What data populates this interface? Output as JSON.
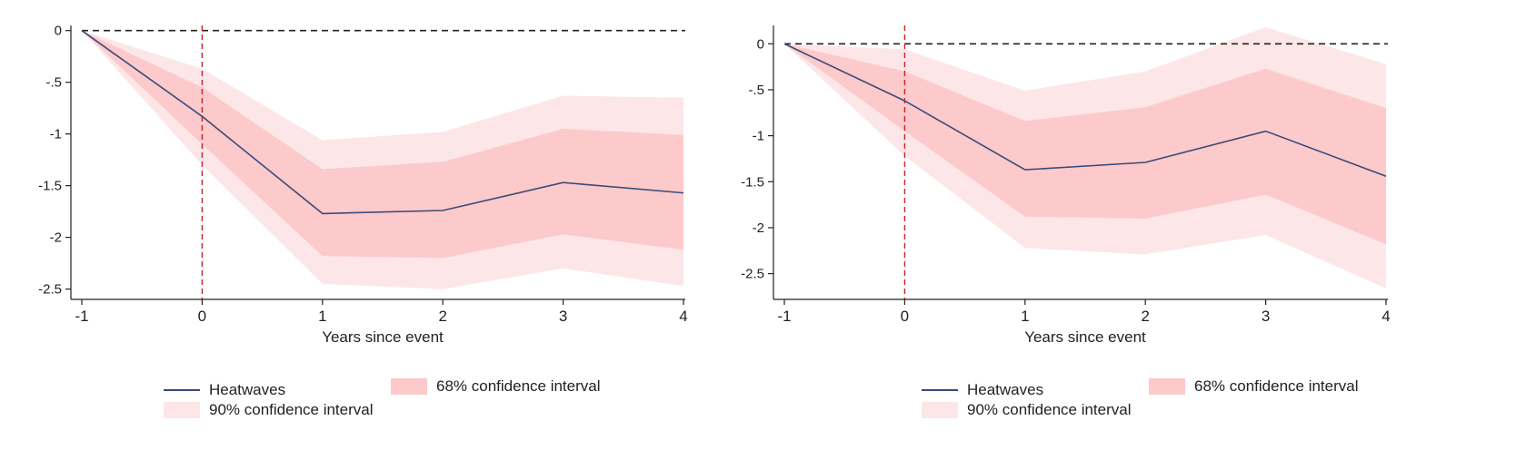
{
  "colors": {
    "line": "#3a4a7a",
    "ci68": "#fccacb",
    "ci90": "#fde6e7",
    "zero_line": "#222222",
    "event_line": "#c8202a"
  },
  "legend": {
    "line_label": "Heatwaves",
    "ci68_label": "68% confidence interval",
    "ci90_label": "90% confidence interval"
  },
  "chart_data": [
    {
      "type": "line",
      "xlabel": "Years since event",
      "ylabel": "",
      "x": [
        -1,
        0,
        1,
        2,
        3,
        4
      ],
      "xticks": [
        "-1",
        "0",
        "1",
        "2",
        "3",
        "4"
      ],
      "yticks": [
        "0",
        "-.5",
        "-1",
        "-1.5",
        "-2",
        "-2.5"
      ],
      "ytick_values": [
        0,
        -0.5,
        -1,
        -1.5,
        -2,
        -2.5
      ],
      "ylim": [
        -2.6,
        0.05
      ],
      "event_x": 0,
      "series": [
        {
          "name": "Heatwaves",
          "values": [
            0,
            -0.83,
            -1.77,
            -1.74,
            -1.47,
            -1.57
          ]
        },
        {
          "name": "68% confidence interval",
          "lower": [
            0,
            -1.1,
            -2.18,
            -2.2,
            -1.97,
            -2.12
          ],
          "upper": [
            0,
            -0.55,
            -1.34,
            -1.27,
            -0.95,
            -1.01
          ]
        },
        {
          "name": "90% confidence interval",
          "lower": [
            0,
            -1.3,
            -2.45,
            -2.5,
            -2.3,
            -2.47
          ],
          "upper": [
            0,
            -0.37,
            -1.06,
            -0.98,
            -0.63,
            -0.65
          ]
        }
      ],
      "legend_position": "bottom"
    },
    {
      "type": "line",
      "xlabel": "Years since event",
      "ylabel": "",
      "x": [
        -1,
        0,
        1,
        2,
        3,
        4
      ],
      "xticks": [
        "-1",
        "0",
        "1",
        "2",
        "3",
        "4"
      ],
      "yticks": [
        "0",
        "-.5",
        "-1",
        "-1.5",
        "-2",
        "-2.5"
      ],
      "ytick_values": [
        0,
        -0.5,
        -1,
        -1.5,
        -2,
        -2.5
      ],
      "ylim": [
        -2.78,
        0.2
      ],
      "event_x": 0,
      "series": [
        {
          "name": "Heatwaves",
          "values": [
            0,
            -0.62,
            -1.37,
            -1.29,
            -0.95,
            -1.44
          ]
        },
        {
          "name": "68% confidence interval",
          "lower": [
            0,
            -0.95,
            -1.88,
            -1.9,
            -1.64,
            -2.18
          ],
          "upper": [
            0,
            -0.3,
            -0.84,
            -0.69,
            -0.27,
            -0.7
          ]
        },
        {
          "name": "90% confidence interval",
          "lower": [
            0,
            -1.22,
            -2.22,
            -2.29,
            -2.08,
            -2.66
          ],
          "upper": [
            0,
            -0.06,
            -0.51,
            -0.3,
            0.18,
            -0.22
          ]
        }
      ],
      "legend_position": "bottom"
    }
  ]
}
